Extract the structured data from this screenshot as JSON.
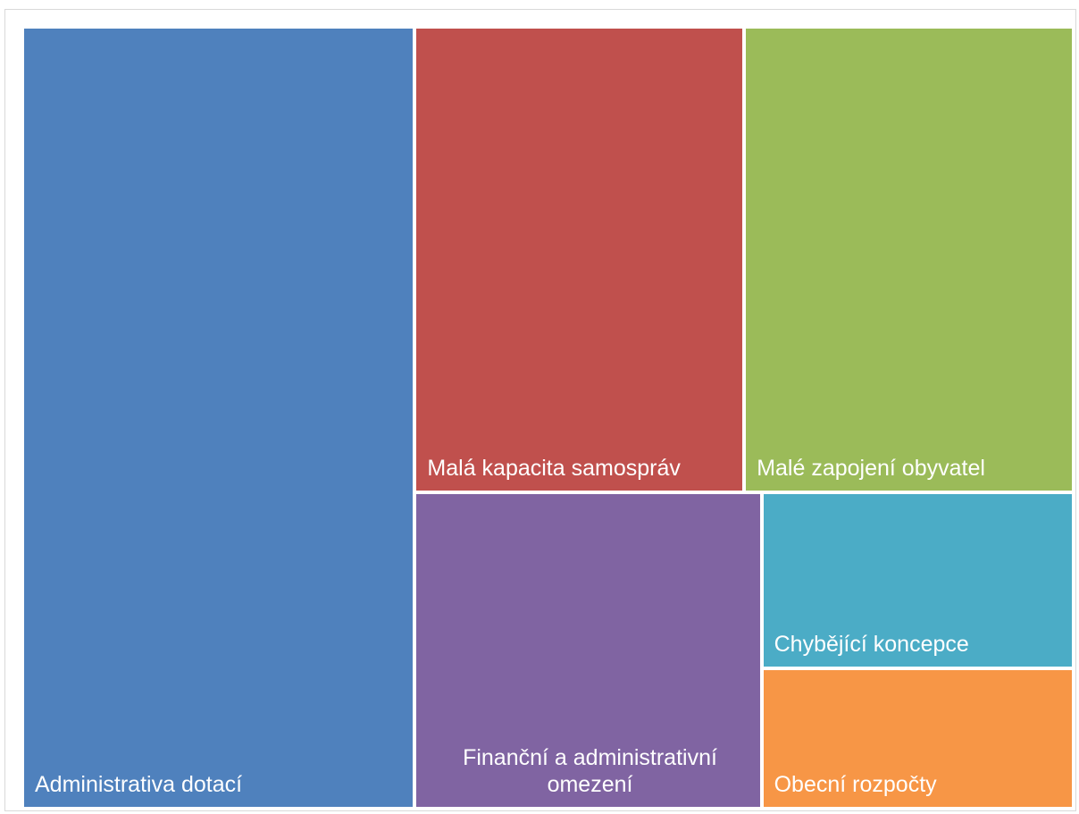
{
  "chart_data": {
    "type": "treemap",
    "categories": [
      "Administrativa dotací",
      "Malá kapacita samospráv",
      "Malé zapojení obyvatel",
      "Finanční a administrativní omezení",
      "Chybějící koncepce",
      "Obecní rozpočty"
    ],
    "values": [
      28,
      14,
      14,
      10,
      5,
      4
    ],
    "colors": [
      "#4f81bd",
      "#c0504d",
      "#9bbb59",
      "#8064a2",
      "#4bacc6",
      "#f79646"
    ]
  }
}
